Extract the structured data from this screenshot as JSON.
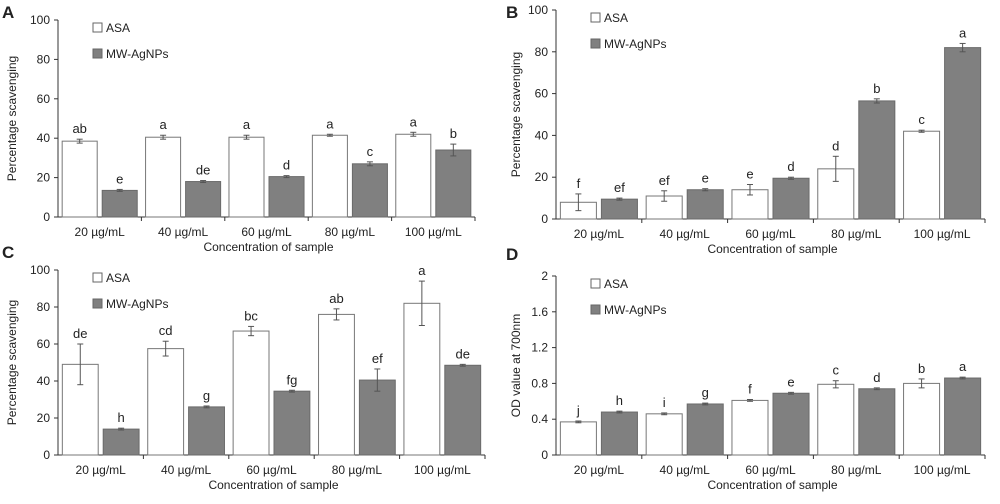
{
  "chart_data": [
    {
      "panel_label": "A",
      "type": "bar",
      "title": "",
      "xlabel": "Concentration of sample",
      "ylabel": "Percentage scavenging",
      "ylim": [
        0,
        100
      ],
      "yticks": [
        0,
        20,
        40,
        60,
        80,
        100
      ],
      "categories": [
        "20 µg/mL",
        "40 µg/mL",
        "60 µg/mL",
        "80 µg/mL",
        "100 µg/mL"
      ],
      "legend_position": "top-left",
      "series": [
        {
          "name": "ASA",
          "color": "#ffffff",
          "values": [
            38.5,
            40.5,
            40.5,
            41.5,
            42
          ],
          "errors": [
            1,
            1,
            1,
            0.5,
            1
          ],
          "letters": [
            "ab",
            "a",
            "a",
            "a",
            "a"
          ]
        },
        {
          "name": "MW-AgNPs",
          "color": "#808080",
          "values": [
            13.5,
            18,
            20.5,
            27,
            34
          ],
          "errors": [
            0.5,
            0.5,
            0.5,
            1,
            3
          ],
          "letters": [
            "e",
            "de",
            "d",
            "c",
            "b"
          ]
        }
      ]
    },
    {
      "panel_label": "B",
      "type": "bar",
      "title": "",
      "xlabel": "Concentration of sample",
      "ylabel": "Percentage scavenging",
      "ylim": [
        0,
        100
      ],
      "yticks": [
        0,
        20,
        40,
        60,
        80,
        100
      ],
      "categories": [
        "20 µg/mL",
        "40 µg/mL",
        "60 µg/mL",
        "80 µg/mL",
        "100 µg/mL"
      ],
      "legend_position": "top-left",
      "series": [
        {
          "name": "ASA",
          "color": "#ffffff",
          "values": [
            8,
            11,
            14,
            24,
            42
          ],
          "errors": [
            4,
            2.5,
            2.5,
            6,
            0.5
          ],
          "letters": [
            "f",
            "ef",
            "e",
            "d",
            "c"
          ]
        },
        {
          "name": "MW-AgNPs",
          "color": "#808080",
          "values": [
            9.5,
            14,
            19.5,
            56.5,
            82
          ],
          "errors": [
            0.5,
            0.5,
            0.5,
            1,
            2
          ],
          "letters": [
            "ef",
            "e",
            "d",
            "b",
            "a"
          ]
        }
      ]
    },
    {
      "panel_label": "C",
      "type": "bar",
      "title": "",
      "xlabel": "Concentration of sample",
      "ylabel": "Percentage scavenging",
      "ylim": [
        0,
        100
      ],
      "yticks": [
        0,
        20,
        40,
        60,
        80,
        100
      ],
      "categories": [
        "20 µg/mL",
        "40 µg/mL",
        "60 µg/mL",
        "80 µg/mL",
        "100 µg/mL"
      ],
      "legend_position": "top-left",
      "series": [
        {
          "name": "ASA",
          "color": "#ffffff",
          "values": [
            49,
            57.5,
            67,
            76,
            82
          ],
          "errors": [
            11,
            4,
            2.5,
            3,
            12
          ],
          "letters": [
            "de",
            "cd",
            "bc",
            "ab",
            "a"
          ]
        },
        {
          "name": "MW-AgNPs",
          "color": "#808080",
          "values": [
            14,
            26,
            34.5,
            40.5,
            48.5
          ],
          "errors": [
            0.5,
            0.5,
            0.5,
            6,
            0.5
          ],
          "letters": [
            "h",
            "g",
            "fg",
            "ef",
            "de"
          ]
        }
      ]
    },
    {
      "panel_label": "D",
      "type": "bar",
      "title": "",
      "xlabel": "Concentration of sample",
      "ylabel": "OD value at 700nm",
      "ylim": [
        0,
        2
      ],
      "yticks": [
        0,
        0.4,
        0.8,
        1.2,
        1.6,
        2
      ],
      "categories": [
        "20 µg/mL",
        "40 µg/mL",
        "60 µg/mL",
        "80 µg/mL",
        "100 µg/mL"
      ],
      "legend_position": "top-left",
      "series": [
        {
          "name": "ASA",
          "color": "#ffffff",
          "values": [
            0.37,
            0.46,
            0.61,
            0.79,
            0.8
          ],
          "errors": [
            0.01,
            0.01,
            0.01,
            0.04,
            0.05
          ],
          "letters": [
            "j",
            "i",
            "f",
            "c",
            "b"
          ]
        },
        {
          "name": "MW-AgNPs",
          "color": "#808080",
          "values": [
            0.48,
            0.57,
            0.69,
            0.74,
            0.86
          ],
          "errors": [
            0.01,
            0.01,
            0.01,
            0.01,
            0.01
          ],
          "letters": [
            "h",
            "g",
            "e",
            "d",
            "a"
          ]
        }
      ]
    }
  ]
}
